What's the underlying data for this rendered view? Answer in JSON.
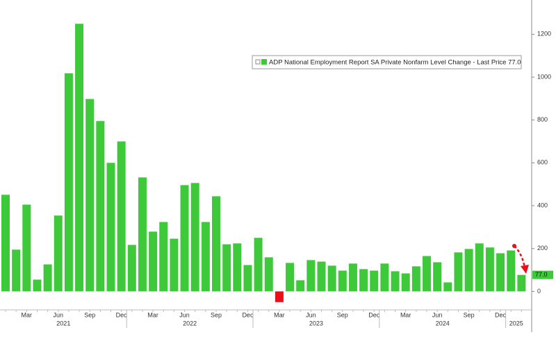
{
  "chart_data": {
    "type": "bar",
    "legend": "ADP National Employment Report SA Private Nonfarm Level Change - Last Price 77.0",
    "categories": [
      null,
      null,
      "Mar",
      null,
      null,
      "Jun",
      null,
      null,
      "Sep",
      null,
      null,
      "Dec",
      null,
      null,
      "Mar",
      null,
      null,
      "Jun",
      null,
      null,
      "Sep",
      null,
      null,
      "Dec",
      null,
      null,
      "Mar",
      null,
      null,
      "Jun",
      null,
      null,
      "Sep",
      null,
      null,
      "Dec",
      null,
      null,
      "Mar",
      null,
      null,
      "Jun",
      null,
      null,
      "Sep",
      null,
      null,
      "Dec",
      null,
      null
    ],
    "years": [
      "2021",
      "2022",
      "2023",
      "2024",
      "2025"
    ],
    "values": [
      451,
      195,
      405,
      55,
      126,
      354,
      1018,
      1249,
      898,
      795,
      600,
      700,
      217,
      532,
      279,
      324,
      246,
      496,
      506,
      324,
      444,
      220,
      224,
      123,
      250,
      159,
      -50,
      133,
      52,
      146,
      139,
      120,
      97,
      130,
      104,
      97,
      130,
      94,
      84,
      117,
      165,
      136,
      42,
      182,
      198,
      224,
      205,
      178,
      191,
      77
    ],
    "color": "#3ec93a",
    "negative_color": "#e8101a",
    "last_price": {
      "value": 77,
      "label": "77.0"
    },
    "ylim": [
      -190,
      1360
    ],
    "yticks": [
      0,
      200,
      400,
      600,
      800,
      1000,
      1200
    ]
  }
}
